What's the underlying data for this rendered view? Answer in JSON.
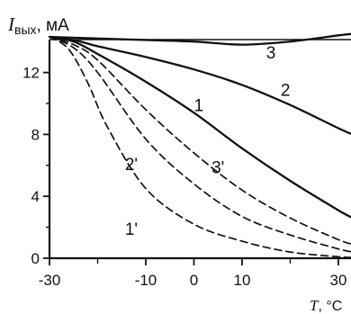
{
  "chart_data": {
    "type": "line",
    "xlabel": "T, °C",
    "ylabel": {
      "symbol": "I",
      "subscript": "вых",
      "unit": ", мА"
    },
    "xlim": [
      -30,
      33
    ],
    "ylim": [
      0,
      15
    ],
    "x_ticks": [
      -30,
      -10,
      0,
      10,
      30
    ],
    "y_ticks": [
      0,
      4,
      8,
      12
    ],
    "grid": false,
    "series": [
      {
        "name": "3",
        "style": "solid",
        "x": [
          -30,
          -20,
          -10,
          0,
          10,
          20,
          30,
          33
        ],
        "y": [
          14.3,
          14.2,
          14.1,
          14.0,
          13.8,
          14.0,
          14.4,
          14.5
        ]
      },
      {
        "name": "2",
        "style": "solid",
        "x": [
          -30,
          -25,
          -20,
          -10,
          0,
          10,
          20,
          30,
          33
        ],
        "y": [
          14.3,
          14.1,
          13.7,
          13.0,
          12.2,
          11.2,
          9.9,
          8.4,
          8.0
        ]
      },
      {
        "name": "1",
        "style": "solid",
        "x": [
          -30,
          -25,
          -20,
          -10,
          0,
          10,
          20,
          30,
          33
        ],
        "y": [
          14.3,
          14.0,
          13.2,
          11.4,
          9.4,
          7.1,
          5.0,
          3.1,
          2.6
        ]
      },
      {
        "name": "3'",
        "style": "dashed",
        "x": [
          -30,
          -25,
          -20,
          -10,
          0,
          10,
          20,
          30,
          33
        ],
        "y": [
          14.3,
          13.8,
          12.8,
          9.6,
          6.8,
          4.4,
          2.6,
          1.2,
          0.9
        ]
      },
      {
        "name": "2'",
        "style": "dashed",
        "x": [
          -30,
          -25,
          -20,
          -10,
          0,
          10,
          20,
          30,
          33
        ],
        "y": [
          14.3,
          13.6,
          12.0,
          7.7,
          4.8,
          2.7,
          1.5,
          0.6,
          0.4
        ]
      },
      {
        "name": "1'",
        "style": "dashed",
        "x": [
          -30,
          -26,
          -22,
          -18,
          -10,
          0,
          10,
          20,
          30,
          33
        ],
        "y": [
          14.3,
          13.5,
          11.3,
          8.5,
          4.5,
          2.2,
          1.1,
          0.4,
          0.1,
          0.05
        ]
      }
    ],
    "curve_labels": [
      {
        "text": "3",
        "x": 16,
        "y": 12.9
      },
      {
        "text": "2",
        "x": 19,
        "y": 10.5
      },
      {
        "text": "1",
        "x": 1,
        "y": 9.5
      },
      {
        "text": "2'",
        "x": -13,
        "y": 5.7
      },
      {
        "text": "3'",
        "x": 5,
        "y": 5.5
      },
      {
        "text": "1'",
        "x": -13,
        "y": 1.5
      }
    ]
  }
}
